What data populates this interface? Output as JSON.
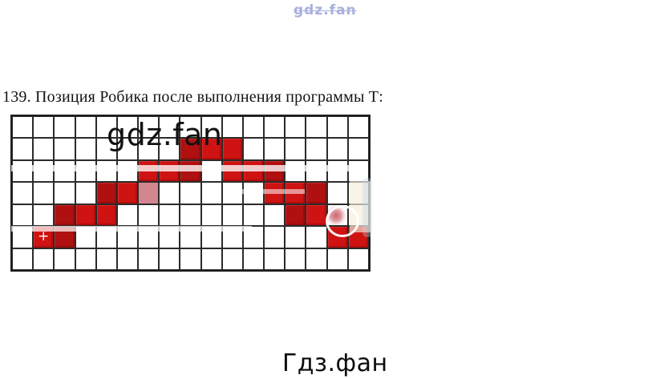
{
  "page": {
    "background": "#ffffff"
  },
  "watermark_top": {
    "text": "gdz.fan",
    "color": "#9ba3d9"
  },
  "title": {
    "text": "139. Позиция Робика после выполнения программы Т:"
  },
  "watermark_grid": {
    "text": "gdz.fan",
    "color": "#121212"
  },
  "watermark_bottom": {
    "text": "Гдз.фан",
    "color": "#0c0c0c"
  },
  "grid": {
    "columns": 17,
    "rows": 7,
    "line_color": "#2b2b2b",
    "cell_colors": {
      "red": "#ce1312",
      "dark_red": "#b01010",
      "faded_pink": "#d4868e",
      "white": "#ffffff"
    },
    "marker": {
      "symbol": "+",
      "row": 5,
      "col": 1,
      "color": "#ffffff"
    },
    "red_cells": [
      {
        "row": 1,
        "col": 8,
        "shade": "dark_red"
      },
      {
        "row": 1,
        "col": 9,
        "shade": "red"
      },
      {
        "row": 1,
        "col": 10,
        "shade": "red"
      },
      {
        "row": 2,
        "col": 6,
        "shade": "red"
      },
      {
        "row": 2,
        "col": 7,
        "shade": "red"
      },
      {
        "row": 2,
        "col": 8,
        "shade": "dark_red"
      },
      {
        "row": 2,
        "col": 10,
        "shade": "red"
      },
      {
        "row": 2,
        "col": 11,
        "shade": "red"
      },
      {
        "row": 2,
        "col": 12,
        "shade": "dark_red"
      },
      {
        "row": 3,
        "col": 4,
        "shade": "dark_red"
      },
      {
        "row": 3,
        "col": 5,
        "shade": "red"
      },
      {
        "row": 3,
        "col": 6,
        "shade": "faded_pink"
      },
      {
        "row": 3,
        "col": 12,
        "shade": "red"
      },
      {
        "row": 3,
        "col": 13,
        "shade": "red"
      },
      {
        "row": 3,
        "col": 14,
        "shade": "dark_red"
      },
      {
        "row": 4,
        "col": 2,
        "shade": "dark_red"
      },
      {
        "row": 4,
        "col": 3,
        "shade": "red"
      },
      {
        "row": 4,
        "col": 4,
        "shade": "red"
      },
      {
        "row": 4,
        "col": 13,
        "shade": "dark_red"
      },
      {
        "row": 4,
        "col": 14,
        "shade": "red"
      },
      {
        "row": 4,
        "col": 15,
        "shade": "faded_blob"
      },
      {
        "row": 5,
        "col": 1,
        "shade": "red",
        "marker": true
      },
      {
        "row": 5,
        "col": 2,
        "shade": "dark_red"
      },
      {
        "row": 5,
        "col": 15,
        "shade": "red"
      },
      {
        "row": 5,
        "col": 16,
        "shade": "red"
      }
    ]
  }
}
